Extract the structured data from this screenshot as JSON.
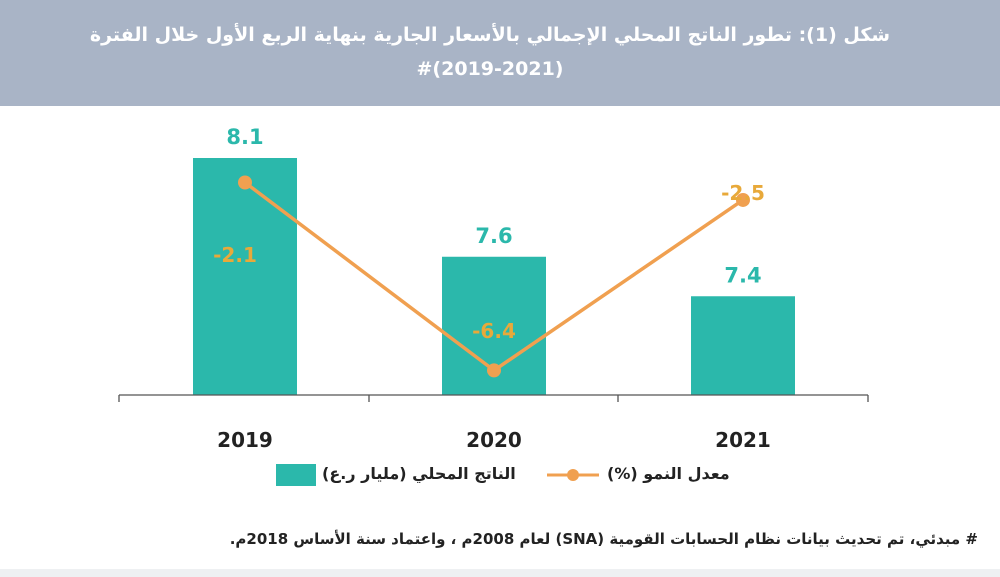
{
  "header": {
    "title": "شكل (1): تطور الناتج المحلي الإجمالي بالأسعار الجارية  بنهاية الربع الأول خلال الفترة (2021-2019)#"
  },
  "colors": {
    "bar": "#2bb8ab",
    "line": "#f0a050",
    "bar_label": "#2bb8ab",
    "line_label": "#e8a93a",
    "header_bg": "#a9b4c6"
  },
  "chart_data": {
    "type": "bar",
    "categories": [
      "2019",
      "2020",
      "2021"
    ],
    "series": [
      {
        "name": "الناتج المحلي (مليار ر.ع)",
        "type": "bar",
        "values": [
          8.1,
          7.6,
          7.4
        ]
      },
      {
        "name": "معدل النمو (%)",
        "type": "line",
        "values": [
          -2.1,
          -6.4,
          -2.5
        ]
      }
    ],
    "bar_labels": [
      "8.1",
      "7.6",
      "7.4"
    ],
    "line_labels": [
      "-2.1",
      "-6.4",
      "-2.5"
    ],
    "legend_position": "bottom",
    "grid": false
  },
  "legend": {
    "line_label": "معدل النمو (%)",
    "bar_label": "الناتج المحلي (مليار ر.ع)"
  },
  "footnote": "# مبدئي، تم تحديث بيانات نظام الحسابات القومية (SNA) لعام 2008م ، واعتماد سنة الأساس 2018م."
}
